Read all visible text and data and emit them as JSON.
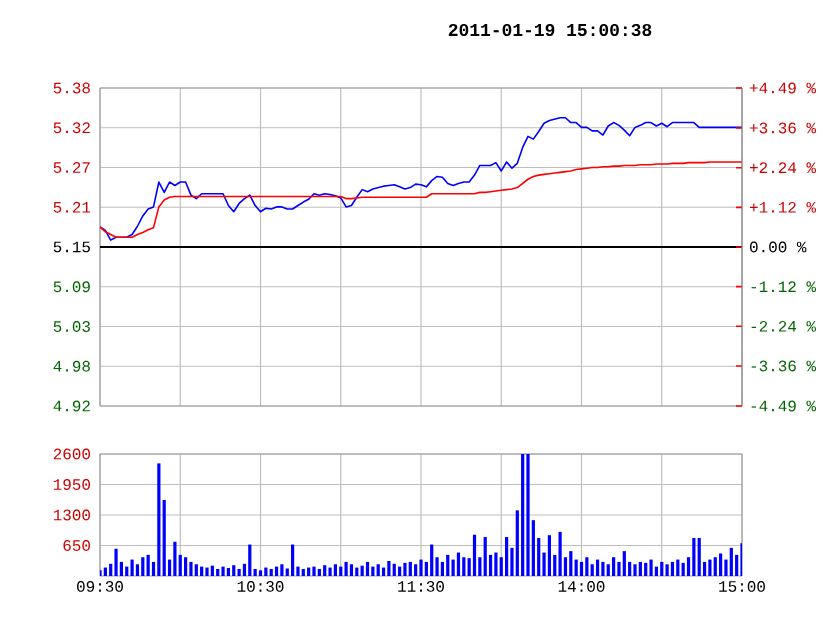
{
  "chart_data": [
    {
      "type": "line",
      "title": "2011-01-19 15:00:38",
      "categories": [
        null,
        null,
        null,
        null,
        null,
        null,
        null,
        null,
        null,
        null,
        null,
        null,
        null,
        null,
        null,
        null,
        null,
        null,
        null,
        null,
        null,
        null,
        null,
        null,
        null,
        null,
        null,
        null,
        null,
        null,
        null,
        null,
        null,
        null,
        null,
        null,
        null,
        null,
        null,
        null,
        null,
        null,
        null,
        null,
        null,
        null,
        null,
        null,
        null,
        null,
        null,
        null,
        null,
        null,
        null,
        null,
        null,
        null,
        null,
        null,
        null,
        null,
        null,
        null,
        null,
        null,
        null,
        null,
        null,
        null,
        null,
        null,
        null,
        null,
        null,
        null,
        null,
        null,
        null,
        null,
        null,
        null,
        null,
        null,
        null,
        null,
        null,
        null,
        null,
        null,
        null,
        null,
        null,
        null,
        null,
        null,
        null,
        null,
        null,
        null,
        null,
        null,
        null,
        null,
        null,
        null,
        null,
        null,
        null,
        null,
        null,
        null,
        null,
        null,
        null,
        null,
        null,
        null,
        null,
        null,
        null
      ],
      "series": [
        {
          "color": "#0000ff",
          "values": [
            5.179,
            5.174,
            5.16,
            5.164,
            5.164,
            5.164,
            5.168,
            5.18,
            5.195,
            5.205,
            5.208,
            5.244,
            5.229,
            5.244,
            5.239,
            5.244,
            5.244,
            5.225,
            5.22,
            5.227,
            5.227,
            5.227,
            5.227,
            5.227,
            5.21,
            5.201,
            5.213,
            5.22,
            5.225,
            5.21,
            5.201,
            5.206,
            5.205,
            5.208,
            5.208,
            5.205,
            5.205,
            5.21,
            5.215,
            5.219,
            5.227,
            5.225,
            5.227,
            5.226,
            5.224,
            5.221,
            5.208,
            5.21,
            5.222,
            5.233,
            5.23,
            5.234,
            5.236,
            5.238,
            5.239,
            5.24,
            5.237,
            5.234,
            5.236,
            5.241,
            5.24,
            5.237,
            5.246,
            5.252,
            5.251,
            5.242,
            5.239,
            5.242,
            5.244,
            5.244,
            5.254,
            5.268,
            5.268,
            5.268,
            5.272,
            5.26,
            5.273,
            5.264,
            5.271,
            5.294,
            5.31,
            5.306,
            5.317,
            5.329,
            5.333,
            5.335,
            5.337,
            5.337,
            5.33,
            5.33,
            5.323,
            5.323,
            5.318,
            5.318,
            5.312,
            5.325,
            5.33,
            5.326,
            5.319,
            5.311,
            5.323,
            5.326,
            5.33,
            5.33,
            5.325,
            5.329,
            5.324,
            5.33,
            5.33,
            5.33,
            5.33,
            5.33,
            5.323,
            5.323,
            5.323,
            5.323,
            5.323,
            5.323,
            5.323,
            5.323,
            5.323
          ]
        },
        {
          "color": "#ff0000",
          "values": [
            5.179,
            5.172,
            5.168,
            5.164,
            5.164,
            5.164,
            5.164,
            5.168,
            5.171,
            5.175,
            5.178,
            5.208,
            5.218,
            5.222,
            5.223,
            5.223,
            5.223,
            5.223,
            5.223,
            5.223,
            5.223,
            5.223,
            5.223,
            5.223,
            5.223,
            5.223,
            5.223,
            5.223,
            5.223,
            5.223,
            5.223,
            5.223,
            5.223,
            5.223,
            5.223,
            5.223,
            5.223,
            5.223,
            5.223,
            5.223,
            5.223,
            5.223,
            5.223,
            5.223,
            5.223,
            5.223,
            5.22,
            5.22,
            5.221,
            5.222,
            5.222,
            5.222,
            5.222,
            5.222,
            5.222,
            5.222,
            5.222,
            5.222,
            5.222,
            5.222,
            5.222,
            5.222,
            5.227,
            5.227,
            5.227,
            5.227,
            5.227,
            5.227,
            5.227,
            5.227,
            5.227,
            5.229,
            5.229,
            5.23,
            5.231,
            5.232,
            5.233,
            5.234,
            5.236,
            5.242,
            5.248,
            5.252,
            5.254,
            5.255,
            5.256,
            5.257,
            5.258,
            5.259,
            5.26,
            5.262,
            5.263,
            5.264,
            5.265,
            5.265,
            5.266,
            5.266,
            5.267,
            5.267,
            5.268,
            5.268,
            5.268,
            5.269,
            5.269,
            5.269,
            5.27,
            5.27,
            5.27,
            5.271,
            5.271,
            5.271,
            5.272,
            5.272,
            5.272,
            5.272,
            5.273,
            5.273,
            5.273,
            5.273,
            5.273,
            5.273,
            5.273
          ]
        }
      ],
      "ylim": [
        4.92,
        5.38
      ],
      "yticks": [
        {
          "value": 4.92,
          "label": "4.92"
        },
        {
          "value": 4.9775,
          "label": "4.98"
        },
        {
          "value": 5.035,
          "label": "5.03"
        },
        {
          "value": 5.0925,
          "label": "5.09"
        },
        {
          "value": 5.15,
          "label": "5.15"
        },
        {
          "value": 5.2075,
          "label": "5.21"
        },
        {
          "value": 5.265,
          "label": "5.27"
        },
        {
          "value": 5.3225,
          "label": "5.32"
        },
        {
          "value": 5.38,
          "label": "5.38"
        }
      ],
      "y2lim": [
        -4.49,
        4.49
      ],
      "y2ticks": [
        {
          "value": -4.49,
          "label": "-4.49 %"
        },
        {
          "value": -3.36,
          "label": "-3.36 %"
        },
        {
          "value": -2.24,
          "label": "-2.24 %"
        },
        {
          "value": -1.12,
          "label": "-1.12 %"
        },
        {
          "value": 0,
          "label": "0.00 %"
        },
        {
          "value": 1.12,
          "label": "+1.12 %"
        },
        {
          "value": 2.24,
          "label": "+2.24 %"
        },
        {
          "value": 3.36,
          "label": "+3.36 %"
        },
        {
          "value": 4.49,
          "label": "+4.49 %"
        }
      ],
      "ref_lines": [
        {
          "axis": "y",
          "value": 5.15,
          "color": "#000000"
        }
      ],
      "grid": true,
      "tick_labels": "y"
    },
    {
      "type": "bar",
      "color": "#0000ff",
      "categories": [
        "09:30",
        null,
        null,
        null,
        null,
        null,
        null,
        null,
        null,
        null,
        null,
        null,
        null,
        null,
        null,
        null,
        null,
        null,
        null,
        null,
        null,
        null,
        null,
        null,
        null,
        null,
        null,
        null,
        null,
        null,
        "10:30",
        null,
        null,
        null,
        null,
        null,
        null,
        null,
        null,
        null,
        null,
        null,
        null,
        null,
        null,
        null,
        null,
        null,
        null,
        null,
        null,
        null,
        null,
        null,
        null,
        null,
        null,
        null,
        null,
        null,
        "11:30",
        null,
        null,
        null,
        null,
        null,
        null,
        null,
        null,
        null,
        null,
        null,
        null,
        null,
        null,
        null,
        null,
        null,
        null,
        null,
        null,
        null,
        null,
        null,
        null,
        null,
        null,
        null,
        null,
        null,
        "14:00",
        null,
        null,
        null,
        null,
        null,
        null,
        null,
        null,
        null,
        null,
        null,
        null,
        null,
        null,
        null,
        null,
        null,
        null,
        null,
        null,
        null,
        null,
        null,
        null,
        null,
        null,
        null,
        null,
        null,
        "15:00"
      ],
      "values": [
        120,
        180,
        260,
        580,
        300,
        200,
        350,
        250,
        400,
        450,
        300,
        2400,
        1620,
        350,
        730,
        450,
        400,
        300,
        250,
        200,
        180,
        220,
        150,
        200,
        170,
        230,
        150,
        260,
        670,
        150,
        120,
        180,
        150,
        200,
        250,
        160,
        670,
        200,
        150,
        180,
        200,
        150,
        230,
        180,
        250,
        200,
        300,
        250,
        180,
        220,
        300,
        200,
        250,
        180,
        320,
        260,
        200,
        280,
        300,
        250,
        350,
        300,
        670,
        400,
        300,
        450,
        350,
        500,
        400,
        380,
        880,
        400,
        830,
        450,
        500,
        400,
        830,
        600,
        1400,
        2600,
        2600,
        1190,
        810,
        500,
        870,
        450,
        940,
        400,
        530,
        350,
        300,
        400,
        250,
        350,
        300,
        250,
        400,
        300,
        530,
        300,
        250,
        300,
        280,
        350,
        200,
        300,
        250,
        300,
        350,
        280,
        400,
        810,
        810,
        300,
        350,
        400,
        480,
        350,
        600,
        450,
        700
      ],
      "ylim": [
        0,
        2600
      ],
      "yticks": [
        650,
        1300,
        1950,
        2600
      ],
      "grid": true
    }
  ]
}
